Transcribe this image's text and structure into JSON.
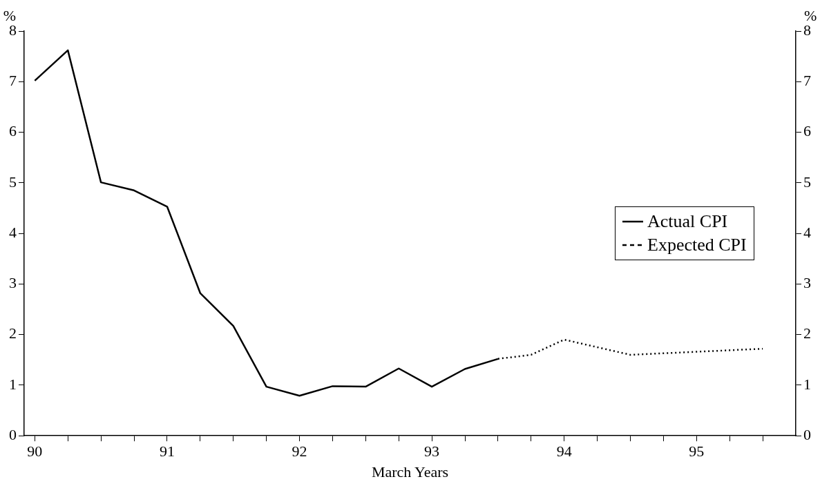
{
  "chart_data": {
    "type": "line",
    "xlabel": "March Years",
    "ylabel": "%",
    "y2label": "%",
    "xlim": [
      89.92,
      95.75
    ],
    "xticks": [
      90,
      {
        "value": 90.25,
        "label": null
      },
      {
        "value": 90.5,
        "label": null
      },
      {
        "value": 90.75,
        "label": null
      },
      91,
      {
        "value": 91.25,
        "label": null
      },
      {
        "value": 91.5,
        "label": null
      },
      {
        "value": 91.75,
        "label": null
      },
      92,
      {
        "value": 92.25,
        "label": null
      },
      {
        "value": 92.5,
        "label": null
      },
      {
        "value": 92.75,
        "label": null
      },
      93,
      {
        "value": 93.25,
        "label": null
      },
      {
        "value": 93.5,
        "label": null
      },
      {
        "value": 93.75,
        "label": null
      },
      94,
      {
        "value": 94.25,
        "label": null
      },
      {
        "value": 94.5,
        "label": null
      },
      {
        "value": 94.75,
        "label": null
      },
      95,
      {
        "value": 95.25,
        "label": null
      },
      {
        "value": 95.5,
        "label": null
      }
    ],
    "ylim": [
      0,
      8
    ],
    "yticks": [
      0,
      1,
      2,
      3,
      4,
      5,
      6,
      7,
      8
    ],
    "y2lim": [
      0,
      8
    ],
    "y2ticks": [
      0,
      1,
      2,
      3,
      4,
      5,
      6,
      7,
      8
    ],
    "grid": false,
    "legend": "right",
    "marker": "none",
    "series": [
      {
        "name": "Actual CPI",
        "color": "#000000",
        "line_style": "solid",
        "x": [
          90,
          90.25,
          90.5,
          90.75,
          91,
          91.25,
          91.5,
          91.75,
          92,
          92.25,
          92.5,
          92.75,
          93,
          93.25,
          93.5
        ],
        "values": [
          7.02,
          7.62,
          5.01,
          4.85,
          4.53,
          2.82,
          2.17,
          0.97,
          0.79,
          0.98,
          0.97,
          1.33,
          0.97,
          1.32,
          1.52
        ]
      },
      {
        "name": "Expected CPI",
        "color": "#000000",
        "line_style": "dotted",
        "x": [
          93.5,
          93.75,
          94,
          94.5,
          95,
          95.5
        ],
        "values": [
          1.52,
          1.6,
          1.9,
          1.6,
          1.66,
          1.72
        ]
      }
    ]
  }
}
